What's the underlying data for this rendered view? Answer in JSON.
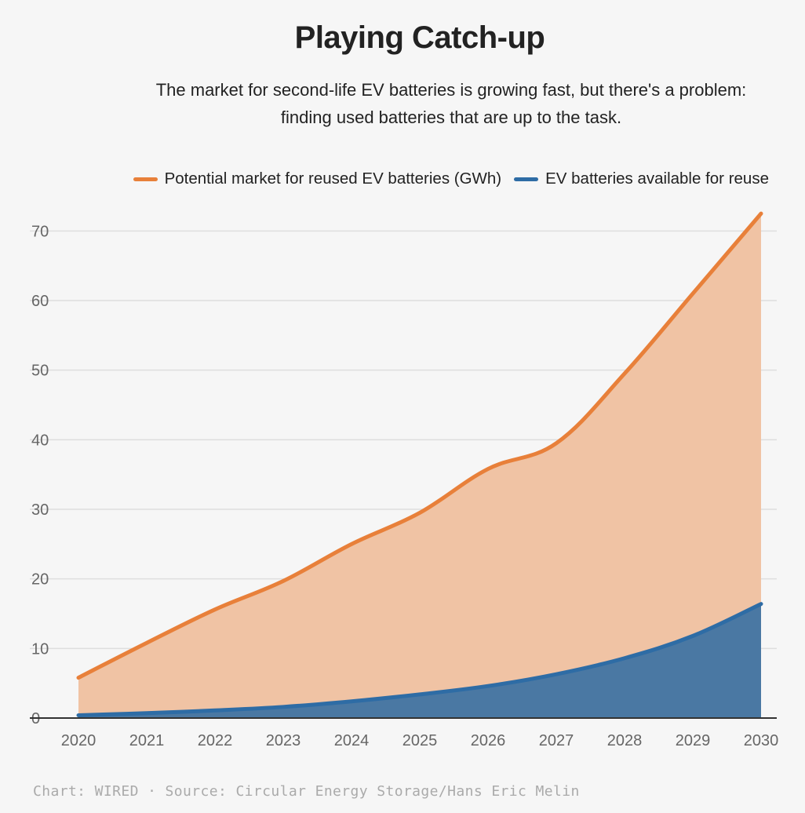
{
  "chart_data": {
    "type": "area",
    "title": "Playing Catch-up",
    "subtitle_line1": "The market for second-life EV batteries is growing fast, but there's a problem:",
    "subtitle_line2": "finding used batteries that are up to the task.",
    "x": [
      2020,
      2021,
      2022,
      2023,
      2024,
      2025,
      2026,
      2027,
      2028,
      2029,
      2030
    ],
    "x_ticks": [
      "2020",
      "2021",
      "2022",
      "2023",
      "2024",
      "2025",
      "2026",
      "2027",
      "2028",
      "2029",
      "2030"
    ],
    "y_ticks": [
      "0",
      "10",
      "20",
      "30",
      "40",
      "50",
      "60",
      "70"
    ],
    "ylim": [
      0,
      75
    ],
    "grid": true,
    "legend_position": "top-right",
    "series": [
      {
        "name": "Potential market for reused EV batteries (GWh)",
        "color": "#e8803a",
        "fill": "#f0c3a4",
        "values": [
          5.8,
          10.8,
          15.6,
          19.7,
          25.0,
          29.5,
          35.8,
          39.5,
          49.5,
          61.0,
          72.5
        ]
      },
      {
        "name": "EV batteries available for reuse",
        "color": "#2e6ca5",
        "fill": "#4a78a3",
        "values": [
          0.4,
          0.7,
          1.1,
          1.6,
          2.4,
          3.4,
          4.6,
          6.3,
          8.6,
          11.8,
          16.4
        ]
      }
    ],
    "source": "Chart: WIRED · Source: Circular Energy Storage/Hans Eric Melin"
  }
}
